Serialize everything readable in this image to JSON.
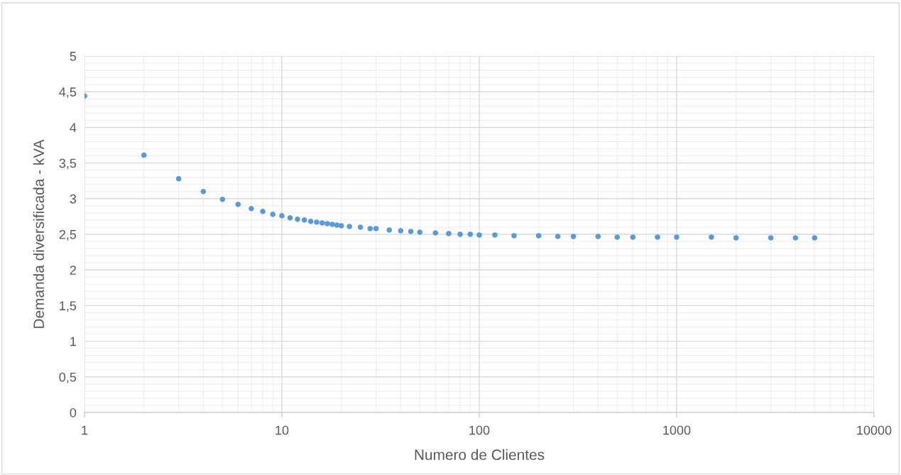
{
  "chart_data": {
    "type": "scatter",
    "xlabel": "Numero de Clientes",
    "ylabel": "Demanda diversificada - kVA",
    "log": "x",
    "grid": true,
    "marker": "circle",
    "xlim": [
      1,
      10000
    ],
    "xticks": [
      1,
      10,
      100,
      1000,
      10000
    ],
    "ylim": [
      0,
      5
    ],
    "yticks": [
      0,
      {
        "value": 0.5,
        "label": "0,5"
      },
      1,
      {
        "value": 1.5,
        "label": "1,5"
      },
      2,
      {
        "value": 2.5,
        "label": "2,5"
      },
      3,
      {
        "value": 3.5,
        "label": "3,5"
      },
      4,
      {
        "value": 4.5,
        "label": "4,5"
      },
      5
    ],
    "series": [
      {
        "color": "#5b9bd5",
        "x": [
          1,
          2,
          3,
          4,
          5,
          6,
          7,
          8,
          9,
          10,
          11,
          12,
          13,
          14,
          15,
          16,
          17,
          18,
          19,
          20,
          22,
          25,
          28,
          30,
          35,
          40,
          45,
          50,
          60,
          70,
          80,
          90,
          100,
          120,
          150,
          200,
          250,
          300,
          400,
          500,
          600,
          800,
          1000,
          1500,
          2000,
          3000,
          4000,
          5000
        ],
        "values": [
          4.44,
          3.61,
          3.28,
          3.1,
          2.99,
          2.92,
          2.86,
          2.82,
          2.78,
          2.76,
          2.73,
          2.71,
          2.7,
          2.68,
          2.67,
          2.66,
          2.65,
          2.64,
          2.63,
          2.62,
          2.61,
          2.6,
          2.58,
          2.58,
          2.56,
          2.55,
          2.54,
          2.53,
          2.52,
          2.51,
          2.5,
          2.5,
          2.49,
          2.49,
          2.48,
          2.48,
          2.47,
          2.47,
          2.47,
          2.46,
          2.46,
          2.46,
          2.46,
          2.46,
          2.45,
          2.45,
          2.45,
          2.45
        ]
      }
    ]
  }
}
